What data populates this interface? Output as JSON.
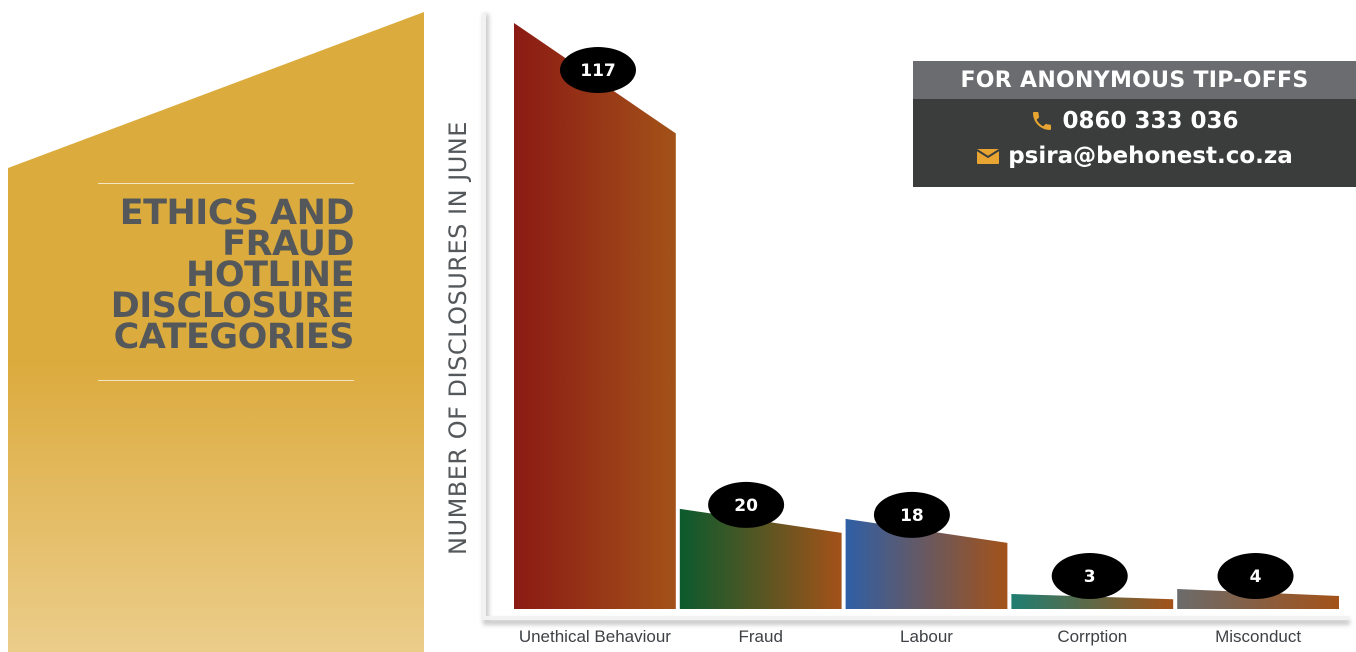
{
  "panel": {
    "title_lines": [
      "ETHICS AND",
      "FRAUD",
      "HOTLINE",
      "DISCLOSURE",
      "CATEGORIES"
    ],
    "colors": {
      "gold": "#dcab3e",
      "gold_light": "#ebcd8a",
      "text": "#55585b"
    }
  },
  "contact": {
    "header": "FOR ANONYMOUS TIP-OFFS",
    "phone": "0860 333 036",
    "email": "psira@behonest.co.za",
    "phone_icon": "phone-icon",
    "email_icon": "envelope-icon",
    "colors": {
      "box": "#3b3d3c",
      "header": "#6b6c6f",
      "icon": "#e9a531"
    }
  },
  "chart_data": {
    "type": "bar",
    "title": "",
    "xlabel": "",
    "ylabel": "NUMBER OF DISCLOSURES IN JUNE",
    "categories": [
      "Unethical Behaviour",
      "Fraud",
      "Labour",
      "Corrption",
      "Misconduct"
    ],
    "values": [
      117,
      20,
      18,
      3,
      4
    ],
    "ylim": [
      0,
      120
    ],
    "grid": false,
    "legend": "none",
    "bar_colors": [
      [
        "#8b1a14",
        "#a35219"
      ],
      [
        "#0b5a2d",
        "#a35219"
      ],
      [
        "#2f5fa6",
        "#a35219"
      ],
      [
        "#1e7e72",
        "#a35219"
      ],
      [
        "#6b6b6b",
        "#a35219"
      ]
    ],
    "label_badge_color": "#000000"
  }
}
